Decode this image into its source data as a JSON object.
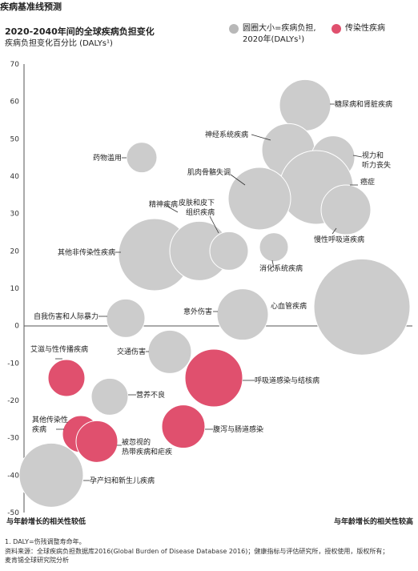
{
  "header": {
    "section_label": "疾病基准线预测",
    "title": "2020-2040年间的全球疾病负担变化",
    "subtitle": "疾病负担变化百分比 (DALYs¹)"
  },
  "legend": {
    "size_line1": "圆圈大小=疾病负担,",
    "size_line2": "2020年(DALYs¹)",
    "infectious": "传染性疾病"
  },
  "colors": {
    "non_infectious": "#cccccc",
    "infectious": "#e0506e",
    "axis": "#555555"
  },
  "footer": {
    "note1": "1. DALY=伤残调整寿命年。",
    "note2": "资料来源：全球疾病负担数据库2016(Global Burden of Disease Database 2016)；健康指标与评估研究所，授权使用，版权所有；",
    "note3": "麦肯锡全球研究院分析"
  },
  "chart_data": {
    "type": "scatter",
    "ylim": [
      -50,
      70
    ],
    "yticks": [
      "70",
      "60",
      "50",
      "40",
      "30",
      "20",
      "10",
      "0",
      "-10",
      "-20",
      "-30",
      "-40",
      "-50"
    ],
    "x_label_left": "与年龄增长的相关性较低",
    "x_label_right": "与年龄增长的相关性较高",
    "series": [
      {
        "category": "non_infectious",
        "points": [
          {
            "label": "糖尿病和肾脏疾病",
            "y": 59
          },
          {
            "label": "神经系统疾病",
            "y": 47
          },
          {
            "label": "视力和\n听力丧失",
            "y": 45
          },
          {
            "label": "药物滥用",
            "y": 45
          },
          {
            "label": "癌症",
            "y": 37
          },
          {
            "label": "肌肉骨骼失调",
            "y": 34
          },
          {
            "label": "慢性呼吸道疾病",
            "y": 31
          },
          {
            "label": "精神疾病",
            "y": 19
          },
          {
            "label": "皮肤和皮下\n组织疾病",
            "y": 20
          },
          {
            "label": "",
            "y": 20
          },
          {
            "label": "消化系统疾病",
            "y": 21
          },
          {
            "label": "其他非传染性疾病",
            "y": 19
          },
          {
            "label": "自我伤害和人际暴力",
            "y": 2
          },
          {
            "label": "意外伤害",
            "y": 3
          },
          {
            "label": "心血管疾病",
            "y": 5
          },
          {
            "label": "交通伤害",
            "y": -7
          },
          {
            "label": "营养不良",
            "y": -19
          },
          {
            "label": "孕产妇和新生儿疾病",
            "y": -40
          }
        ]
      },
      {
        "category": "infectious",
        "points": [
          {
            "label": "艾滋与性传播疾病",
            "y": -14
          },
          {
            "label": "呼吸道感染与结核病",
            "y": -14
          },
          {
            "label": "腹泻与肠道感染",
            "y": -27
          },
          {
            "label": "其他传染性\n疾病",
            "y": -29
          },
          {
            "label": "被忽视的\n热带疾病和疟疾",
            "y": -31
          }
        ]
      }
    ]
  }
}
